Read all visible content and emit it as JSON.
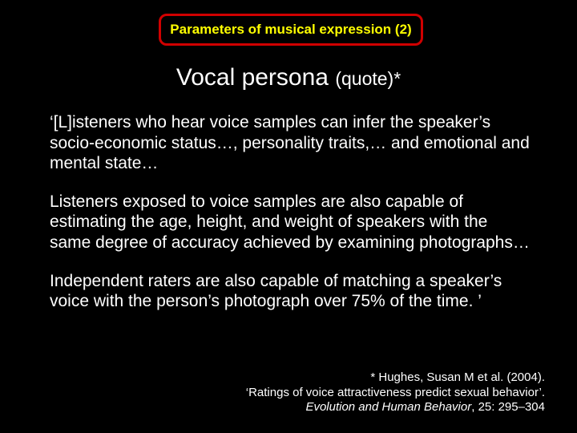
{
  "header": {
    "text": "Parameters of musical expression (2)",
    "border_color": "#d00000",
    "text_color": "#ffff00"
  },
  "subtitle": {
    "main": "Vocal persona ",
    "sub": "(quote)*"
  },
  "paragraphs": {
    "p1": "‘[L]isteners who hear voice samples can infer the speaker’s socio-economic status…, personality traits,… and emotional and mental state…",
    "p2": "Listeners exposed to voice samples are also capable of estimating the age, height, and weight of speakers with the same degree of accuracy achieved by examining photographs…",
    "p3": "Independent raters are also capable of matching a speaker’s voice with the person’s photograph over 75% of the time. ’"
  },
  "citation": {
    "line1": "* Hughes, Susan M et al. (2004).",
    "line2": "‘Ratings of voice attractiveness predict sexual behavior’.",
    "journal": "Evolution and Human Behavior",
    "rest": ", 25: 295–304"
  },
  "colors": {
    "background": "#000000",
    "text": "#ffffff"
  }
}
